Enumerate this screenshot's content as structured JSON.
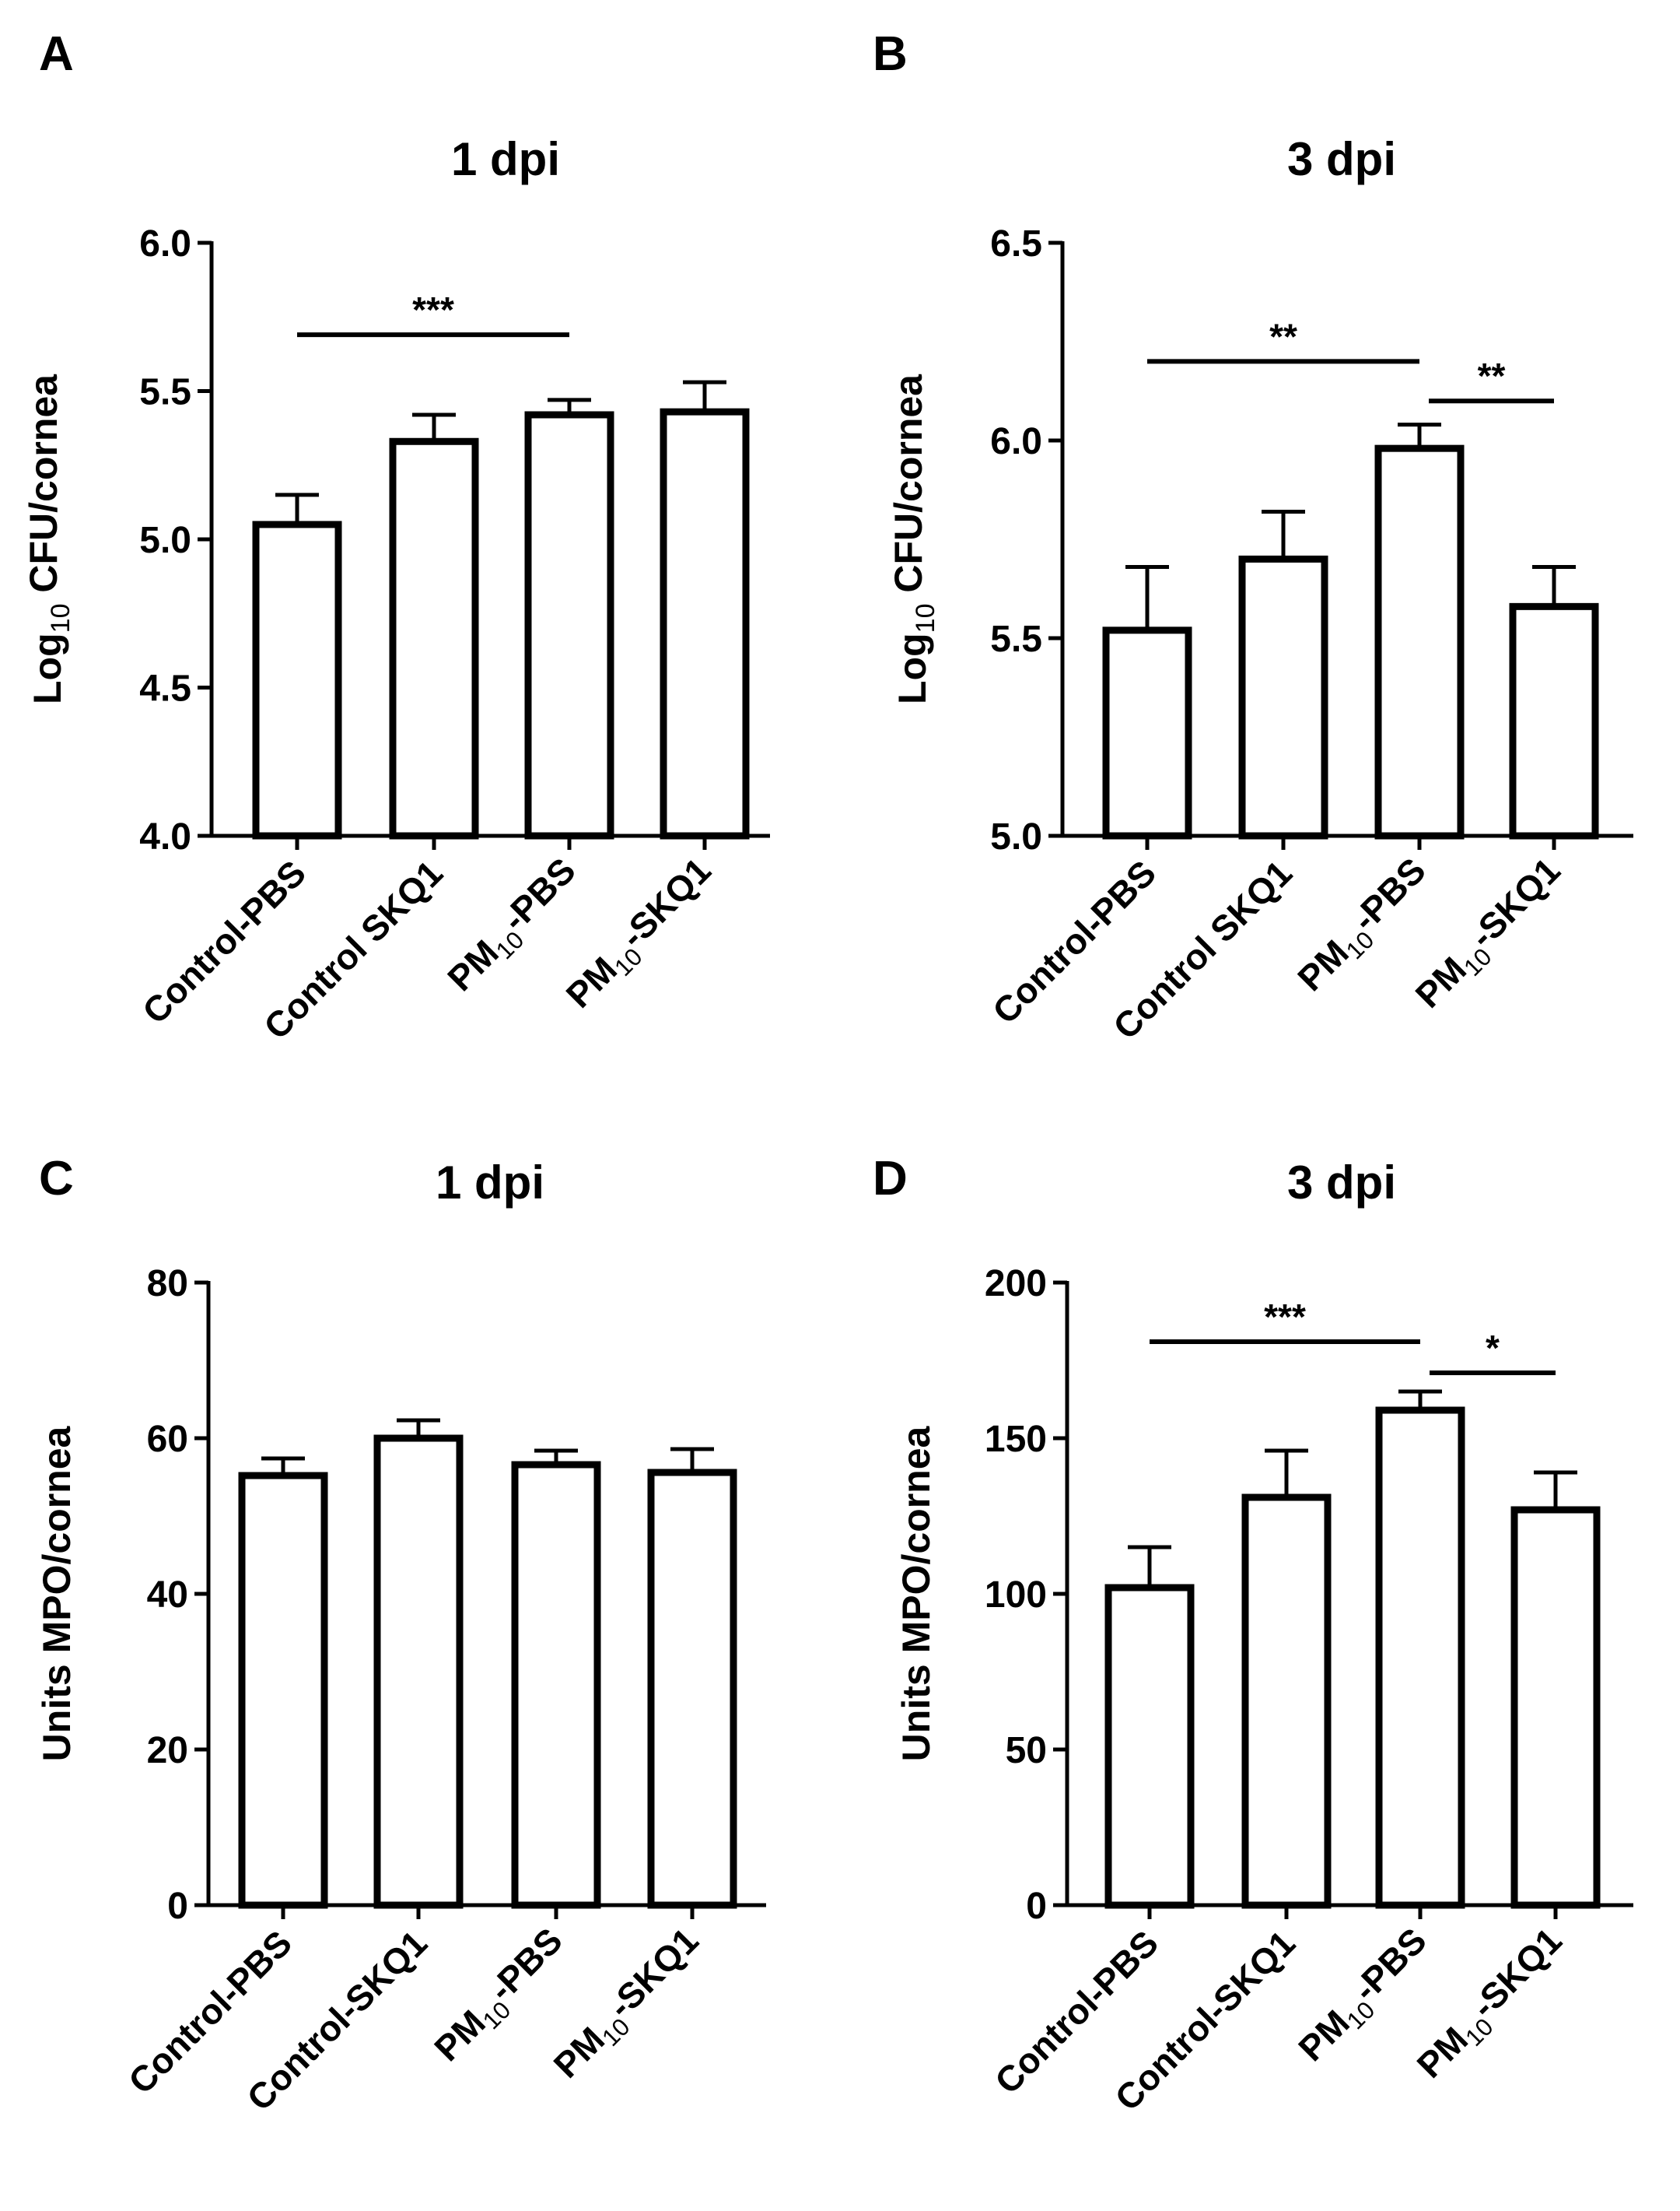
{
  "chart_data": [
    {
      "panel_label": "A",
      "type": "bar",
      "title": "1 dpi",
      "ylabel": {
        "main": "Log",
        "sub": "10",
        "rest": " CFU/cornea"
      },
      "ylim": [
        4.0,
        6.0
      ],
      "yticks": [
        "4.0",
        "4.5",
        "5.0",
        "5.5",
        "6.0"
      ],
      "categories": [
        {
          "main": "Control-PBS"
        },
        {
          "main": "Control SKQ1"
        },
        {
          "main": "PM",
          "sub": "10",
          "rest": "-PBS"
        },
        {
          "main": "PM",
          "sub": "10",
          "rest": "-SKQ1"
        }
      ],
      "values": [
        5.05,
        5.33,
        5.42,
        5.43
      ],
      "errors": [
        0.1,
        0.09,
        0.05,
        0.1
      ],
      "significance": [
        {
          "from": 0,
          "to": 2,
          "label": "***",
          "y": 5.69
        }
      ]
    },
    {
      "panel_label": "B",
      "type": "bar",
      "title": "3 dpi",
      "ylabel": {
        "main": "Log",
        "sub": "10",
        "rest": " CFU/cornea"
      },
      "ylim": [
        5.0,
        6.5
      ],
      "yticks": [
        "5.0",
        "5.5",
        "6.0",
        "6.5"
      ],
      "categories": [
        {
          "main": "Control-PBS"
        },
        {
          "main": "Control SKQ1"
        },
        {
          "main": "PM",
          "sub": "10",
          "rest": "-PBS"
        },
        {
          "main": "PM",
          "sub": "10",
          "rest": "-SKQ1"
        }
      ],
      "values": [
        5.52,
        5.7,
        5.98,
        5.58
      ],
      "errors": [
        0.16,
        0.12,
        0.06,
        0.1
      ],
      "significance": [
        {
          "from": 0,
          "to": 2,
          "label": "**",
          "y": 6.2
        },
        {
          "from": 2,
          "to": 3,
          "label": "**",
          "y": 6.1
        }
      ]
    },
    {
      "panel_label": "C",
      "type": "bar",
      "title": "1 dpi",
      "ylabel": {
        "main": "Units MPO/cornea"
      },
      "ylim": [
        0,
        80
      ],
      "yticks": [
        "0",
        "20",
        "40",
        "60",
        "80"
      ],
      "categories": [
        {
          "main": "Control-PBS"
        },
        {
          "main": "Control-SKQ1"
        },
        {
          "main": "PM",
          "sub": "10",
          "rest": "-PBS"
        },
        {
          "main": "PM",
          "sub": "10",
          "rest": "-SKQ1"
        }
      ],
      "values": [
        55.2,
        60.0,
        56.6,
        55.6
      ],
      "errors": [
        2.2,
        2.3,
        1.8,
        3.0
      ],
      "significance": []
    },
    {
      "panel_label": "D",
      "type": "bar",
      "title": "3 dpi",
      "ylabel": {
        "main": "Units MPO/cornea"
      },
      "ylim": [
        0,
        200
      ],
      "yticks": [
        "0",
        "50",
        "100",
        "150",
        "200"
      ],
      "categories": [
        {
          "main": "Control-PBS"
        },
        {
          "main": "Control-SKQ1"
        },
        {
          "main": "PM",
          "sub": "10",
          "rest": "-PBS"
        },
        {
          "main": "PM",
          "sub": "10",
          "rest": "-SKQ1"
        }
      ],
      "values": [
        102,
        131,
        159,
        127
      ],
      "errors": [
        13,
        15,
        6,
        12
      ],
      "significance": [
        {
          "from": 0,
          "to": 2,
          "label": "***",
          "y": 181
        },
        {
          "from": 2,
          "to": 3,
          "label": "*",
          "y": 171
        }
      ]
    }
  ]
}
